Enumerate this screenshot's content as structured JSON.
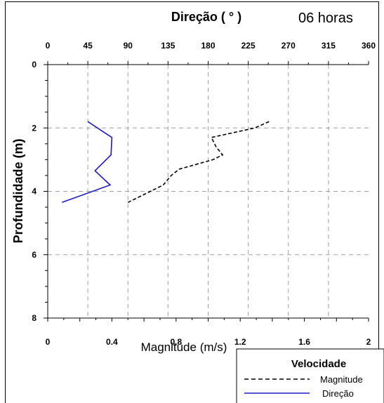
{
  "chart_data": {
    "type": "line",
    "corner_label": "06 horas",
    "top_axis": {
      "title": "Direção ( ° )",
      "range": [
        0,
        360
      ],
      "ticks": [
        "0",
        "45",
        "90",
        "135",
        "180",
        "225",
        "270",
        "315",
        "360"
      ]
    },
    "bottom_axis": {
      "title": "Magnitude (m/s)",
      "range": [
        0,
        2
      ],
      "ticks": [
        "0",
        "0.4",
        "0.8",
        "1.2",
        "1.6",
        "2"
      ]
    },
    "y_axis": {
      "title": "Profundidade (m)",
      "range": [
        0,
        8
      ],
      "reversed": true,
      "ticks": [
        "0",
        "2",
        "4",
        "6",
        "8"
      ]
    },
    "grid": "dashed",
    "legend": {
      "title": "Velocidade",
      "position": "bottom-right",
      "items": [
        "Magnitude",
        "Direção"
      ]
    },
    "series": [
      {
        "name": "Magnitude",
        "axis": "bottom",
        "style": "dashed",
        "color": "#000000",
        "points": [
          [
            1.38,
            1.8
          ],
          [
            1.29,
            2.0
          ],
          [
            1.02,
            2.3
          ],
          [
            1.05,
            2.6
          ],
          [
            1.09,
            2.85
          ],
          [
            1.03,
            3.0
          ],
          [
            0.82,
            3.3
          ],
          [
            0.77,
            3.5
          ],
          [
            0.72,
            3.8
          ],
          [
            0.5,
            4.35
          ]
        ]
      },
      {
        "name": "Direção",
        "axis": "top",
        "style": "solid",
        "color": "#1a1acc",
        "points": [
          [
            45,
            1.8
          ],
          [
            72,
            2.3
          ],
          [
            71,
            2.85
          ],
          [
            53,
            3.35
          ],
          [
            70,
            3.8
          ],
          [
            16,
            4.35
          ]
        ]
      }
    ]
  }
}
